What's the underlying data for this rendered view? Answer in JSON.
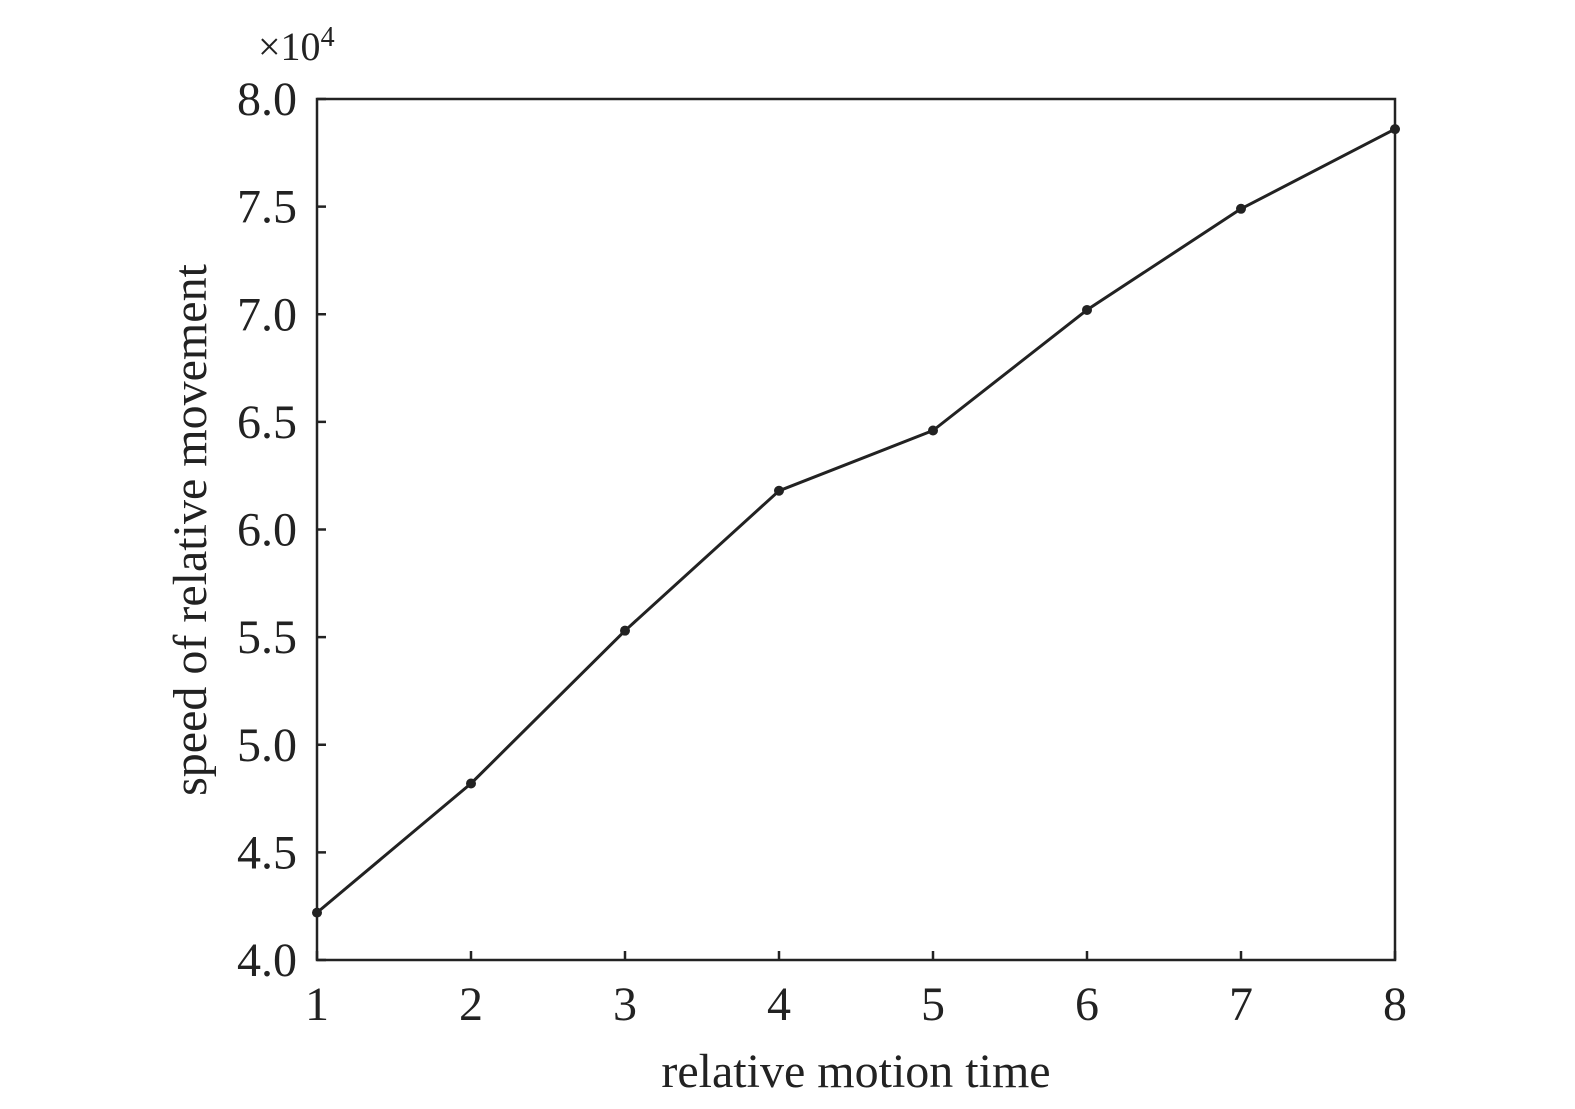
{
  "chart_data": {
    "type": "line",
    "title": "",
    "xlabel": "relative motion time",
    "ylabel": "speed of relative movement",
    "y_multiplier": "×10",
    "y_multiplier_exponent": "4",
    "x": [
      1,
      2,
      3,
      4,
      5,
      6,
      7,
      8
    ],
    "y": [
      4.22,
      4.82,
      5.53,
      6.18,
      6.46,
      7.02,
      7.49,
      7.86
    ],
    "xlim": [
      1,
      8
    ],
    "ylim": [
      4.0,
      8.0
    ],
    "xticks": [
      "1",
      "2",
      "3",
      "4",
      "5",
      "6",
      "7",
      "8"
    ],
    "yticks": [
      "4.0",
      "4.5",
      "5.0",
      "5.5",
      "6.0",
      "6.5",
      "7.0",
      "7.5",
      "8.0"
    ],
    "grid": false,
    "legend": "none",
    "line_color": "#222222",
    "marker": "dot"
  }
}
